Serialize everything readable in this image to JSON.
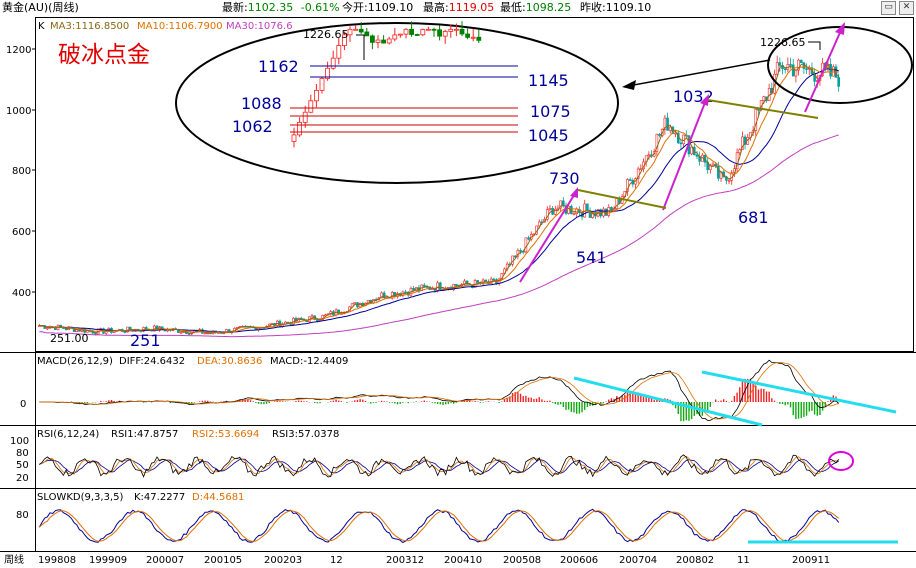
{
  "header": {
    "instrument": "黄金(AU)(周线)",
    "latest_label": "最新:",
    "latest": "1102.35",
    "change": "-0.61%",
    "open_label": "今开:",
    "open": "1109.10",
    "high_label": "最高:",
    "high": "1119.05",
    "low_label": "最低:",
    "low": "1098.25",
    "prev_close_label": "昨收:",
    "prev_close": "1109.10"
  },
  "panels": {
    "main": {
      "legend_k": "K",
      "ma3": "MA3:1116.8500",
      "ma10": "MA10:1106.7900",
      "ma30": "MA30:1076.6",
      "title_annotation": "破冰点金",
      "yticks": [
        "1200",
        "1000",
        "800",
        "600",
        "400"
      ]
    },
    "macd": {
      "legend": "MACD(26,12,9)",
      "diff": "DIFF:24.6432",
      "dea": "DEA:30.8636",
      "macd": "MACD:-12.4409",
      "ytick": "0"
    },
    "rsi": {
      "legend": "RSI(6,12,24)",
      "rsi1": "RSI1:47.8757",
      "rsi2": "RSI2:53.6694",
      "rsi3": "RSI3:57.0378",
      "yticks": [
        "100",
        "80",
        "50",
        "20"
      ]
    },
    "kd": {
      "legend": "SLOWKD(9,3,3,5)",
      "k": "K:47.2277",
      "d": "D:44.5681",
      "ytick": "80"
    }
  },
  "xaxis": {
    "corner_label": "周线",
    "ticks": [
      "199808",
      "199909",
      "200007",
      "200105",
      "200203",
      "12",
      "200312",
      "200410",
      "200508",
      "200606",
      "200704",
      "200802",
      "11",
      "200911"
    ]
  },
  "annotations": {
    "low_251_small": "251.00",
    "low_251": "251",
    "peak_730": "730",
    "low_541": "541",
    "peak_1032": "1032",
    "low_681": "681",
    "high_1226_left": "1226.65",
    "high_1226_right": "1226.65",
    "inset_levels_left": [
      "1162",
      "1088",
      "1062"
    ],
    "inset_levels_right": [
      "1145",
      "1075",
      "1045"
    ]
  },
  "chart_data": {
    "type": "line",
    "title": "",
    "xlabel": "",
    "ylabel": "",
    "ylim": [
      250,
      1280
    ],
    "x": [
      "199808",
      "199909",
      "200007",
      "200105",
      "200203",
      "200212",
      "200312",
      "200410",
      "200508",
      "200606",
      "200704",
      "200802",
      "200811",
      "200911",
      "201001"
    ],
    "series": [
      {
        "values": [
          290,
          270,
          280,
          265,
          290,
          320,
          390,
          420,
          430,
          680,
          660,
          960,
          760,
          1150,
          1110
        ]
      }
    ],
    "annotated_levels": [
      251,
      541,
      681,
      730,
      1032,
      1045,
      1062,
      1075,
      1088,
      1145,
      1162,
      1226.65
    ],
    "colors": {
      "up": "#ff2020",
      "down": "#00a0a0",
      "ma3": "#8b6914",
      "ma10": "#e07000",
      "ma30": "#c040c0",
      "annot_blue": "#000099",
      "arrow_magenta": "#cc22cc",
      "cyan": "#22ddee",
      "olive": "#808000"
    }
  }
}
